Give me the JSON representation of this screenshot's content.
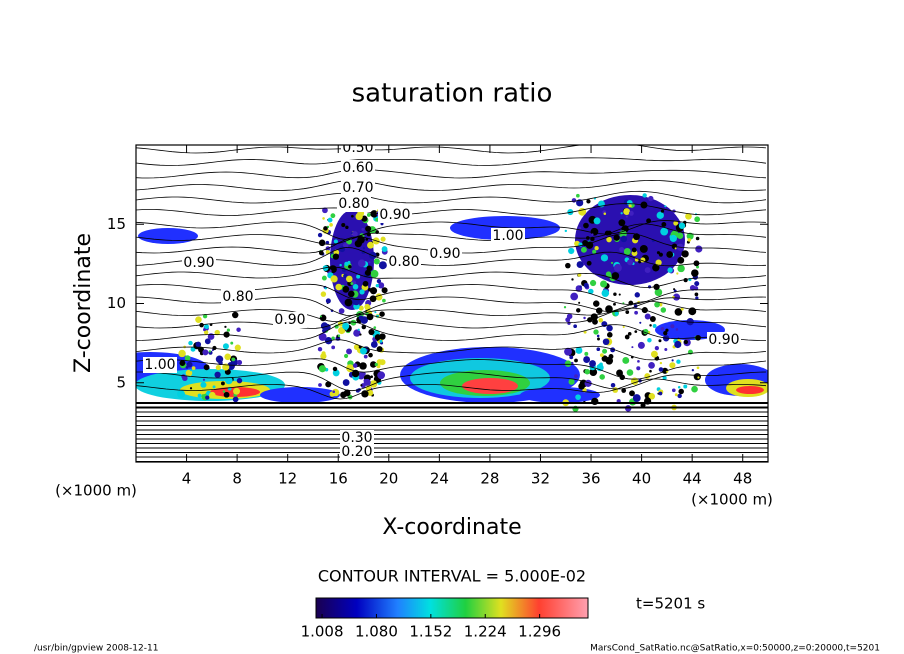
{
  "chart_data": {
    "type": "contour",
    "title": "saturation ratio",
    "x_label": "X-coordinate",
    "y_label": "Z-coordinate",
    "x_unit": "(×1000 m)",
    "y_unit": "(×1000 m)",
    "xlim": [
      0,
      50
    ],
    "ylim": [
      0,
      20
    ],
    "xticks": [
      4,
      8,
      12,
      16,
      20,
      24,
      28,
      32,
      36,
      40,
      44,
      48
    ],
    "yticks": [
      5,
      10,
      15
    ],
    "contour_labels": [
      "0.50",
      "0.60",
      "0.70",
      "0.80",
      "0.90",
      "0.90",
      "0.80",
      "0.90",
      "0.80",
      "1.00",
      "0.90",
      "1.00",
      "0.90",
      "0.30",
      "0.20"
    ],
    "contour_interval": "CONTOUR INTERVAL = 5.000E-02",
    "colorbar": {
      "lim": [
        1.0,
        1.36
      ],
      "ticks": [
        1.008,
        {
          "value": 1.08,
          "label": "1.080"
        },
        1.152,
        1.224,
        1.296
      ]
    },
    "time_label": "t=5201 s",
    "footer_left": "/usr/bin/gpview  2008-12-11",
    "footer_right": "MarsCond_SatRatio.nc@SatRatio,x=0:50000,z=0:20000,t=5201"
  }
}
